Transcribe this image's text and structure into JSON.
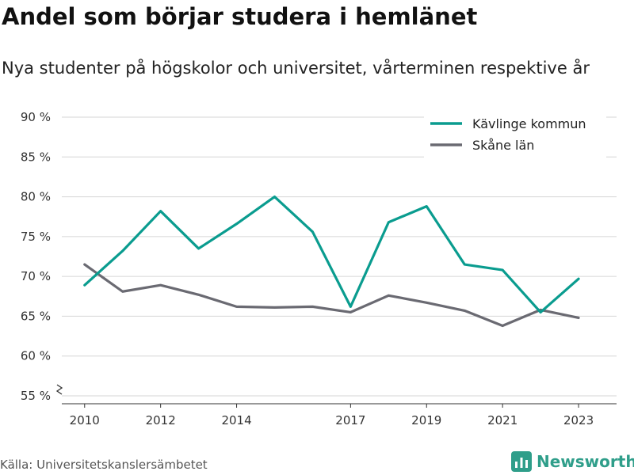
{
  "title": "Andel som börjar studera i hemlänet",
  "subtitle": "Nya studenter på högskolor och universitet, vårterminen respektive år",
  "source": "Källa: Universitetskanslersämbetet",
  "brand": {
    "name": "Newsworthy",
    "color": "#2f9e8a",
    "icon": "bar-chart-icon"
  },
  "chart_data": {
    "type": "line",
    "title": "Andel som börjar studera i hemlänet",
    "subtitle": "Nya studenter på högskolor och universitet, vårterminen respektive år",
    "x": [
      2010,
      2011,
      2012,
      2013,
      2014,
      2015,
      2016,
      2017,
      2018,
      2019,
      2020,
      2021,
      2022,
      2023
    ],
    "x_ticks": [
      "2010",
      "2012",
      "2014",
      "2017",
      "2019",
      "2021",
      "2023"
    ],
    "y_ticks": [
      "55 %",
      "60 %",
      "65 %",
      "70 %",
      "75 %",
      "80 %",
      "85 %",
      "90 %"
    ],
    "ylim": [
      55,
      90
    ],
    "y_axis_break": true,
    "grid": true,
    "legend_position": "top-right",
    "series": [
      {
        "name": "Kävlinge kommun",
        "color": "#0a9c8f",
        "values": [
          68.9,
          73.2,
          78.2,
          73.5,
          76.6,
          80.0,
          75.6,
          66.2,
          76.8,
          78.8,
          71.5,
          70.8,
          65.5,
          69.7
        ]
      },
      {
        "name": "Skåne län",
        "color": "#6a6a72",
        "values": [
          71.5,
          68.1,
          68.9,
          67.7,
          66.2,
          66.1,
          66.2,
          65.5,
          67.6,
          66.7,
          65.7,
          63.8,
          65.8,
          64.8
        ]
      }
    ]
  }
}
